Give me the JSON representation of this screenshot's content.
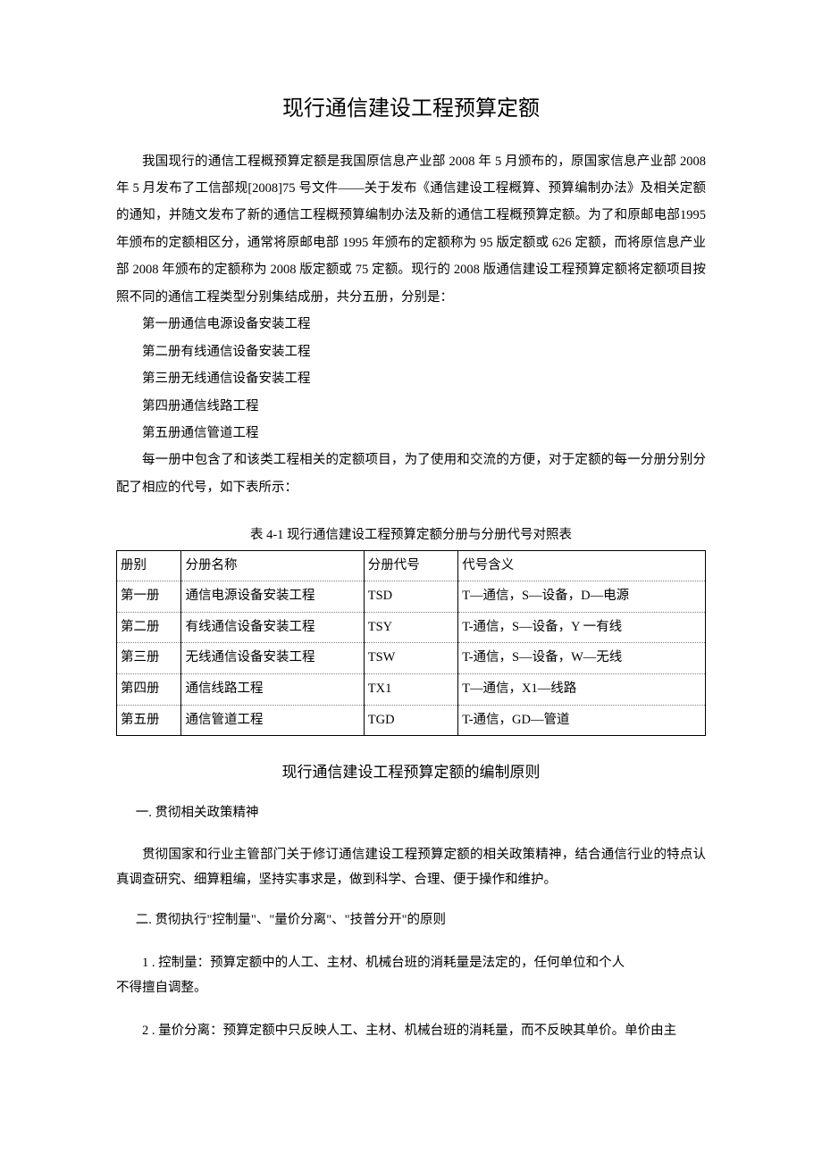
{
  "title": "现行通信建设工程预算定额",
  "intro_paragraph": "我国现行的通信工程概预算定额是我国原信息产业部 2008 年 5 月颁布的，原国家信息产业部 2008年 5 月发布了工信部规[2008]75 号文件——关于发布《通信建设工程概算、预算编制办法》及相关定额的通知，并随文发布了新的通信工程概预算编制办法及新的通信工程概预算定额。为了和原邮电部1995 年颁布的定额相区分，通常将原邮电部 1995 年颁布的定额称为 95 版定额或 626 定额，而将原信息产业部 2008 年颁布的定额称为 2008 版定额或 75 定额。现行的 2008 版通信建设工程预算定额将定额项目按照不同的通信工程类型分别集结成册，共分五册，分别是：",
  "volumes": [
    "第一册通信电源设备安装工程",
    "第二册有线通信设备安装工程",
    "第三册无线通信设备安装工程",
    "第四册通信线路工程",
    "第五册通信管道工程"
  ],
  "after_volumes": "每一册中包含了和该类工程相关的定额项目，为了使用和交流的方便，对于定额的每一分册分别分配了相应的代号，如下表所示：",
  "table": {
    "caption": "表 4-1 现行通信建设工程预算定额分册与分册代号对照表",
    "columns": [
      "册别",
      "分册名称",
      "分册代号",
      "代号含义"
    ],
    "rows": [
      [
        "第一册",
        "通信电源设备安装工程",
        "TSD",
        "T—通信，S—设备，D—电源"
      ],
      [
        "第二册",
        "有线通信设备安装工程",
        "TSY",
        "T-通信，S—设备，Y 一有线"
      ],
      [
        "第三册",
        "无线通信设备安装工程",
        "TSW",
        "T-通信，S—设备，W—无线"
      ],
      [
        "第四册",
        "通信线路工程",
        "TX1",
        "T—通信，X1—线路"
      ],
      [
        "第五册",
        "通信管道工程",
        "TGD",
        "T-通信，GD—管道"
      ]
    ],
    "column_widths": [
      "11%",
      "31%",
      "16%",
      "42%"
    ]
  },
  "subtitle": "现行通信建设工程预算定额的编制原则",
  "section1_heading": "一. 贯彻相关政策精神",
  "section1_body": "贯彻国家和行业主管部门关于修订通信建设工程预算定额的相关政策精神，结合通信行业的特点认真调查研究、细算粗编，坚持实事求是，做到科学、合理、便于操作和维护。",
  "section2_heading": "二. 贯彻执行\"控制量\"、\"量价分离\"、\"技普分开\"的原则",
  "item1_line1": "1 . 控制量：预算定额中的人工、主材、机械台班的消耗量是法定的，任何单位和个人",
  "item1_line2": "不得擅自调整。",
  "item2": "2 . 量价分离：预算定额中只反映人工、主材、机械台班的消耗量，而不反映其单价。单价由主"
}
